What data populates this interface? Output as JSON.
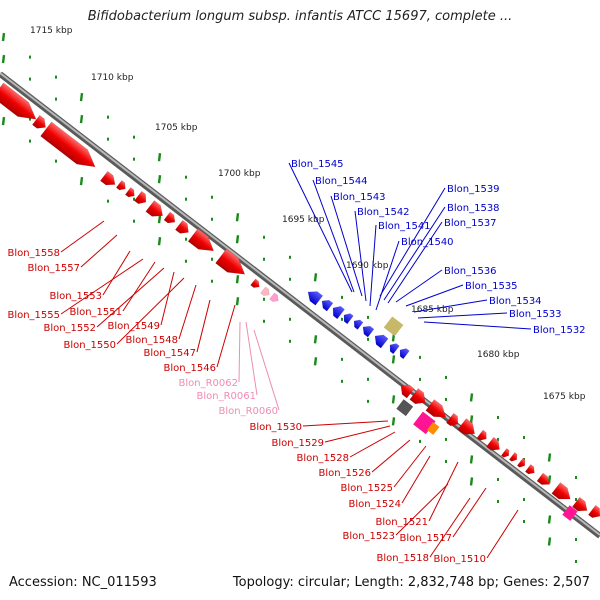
{
  "title": "Bifidobacterium longum subsp. infantis ATCC 15697, complete ...",
  "accession": "Accession: NC_011593",
  "summary": "Topology: circular; Length: 2,832,748 bp; Genes: 2,507",
  "colors": {
    "forward_strand_gene": "#ff0000",
    "reverse_strand_gene": "#0000ff",
    "rna_gene": "#ff69b4",
    "backbone": "#8a8a8a",
    "ticks": "#1a8a1a"
  },
  "scale_labels": [
    "1715 kbp",
    "1710 kbp",
    "1705 kbp",
    "1700 kbp",
    "1695 kbp",
    "1690 kbp",
    "1685 kbp",
    "1680 kbp",
    "1675 kbp"
  ],
  "reverse_gene_labels": [
    "Blon_1545",
    "Blon_1544",
    "Blon_1543",
    "Blon_1542",
    "Blon_1541",
    "Blon_1540",
    "Blon_1539",
    "Blon_1538",
    "Blon_1537",
    "Blon_1536",
    "Blon_1535",
    "Blon_1534",
    "Blon_1533",
    "Blon_1532"
  ],
  "forward_gene_labels_upper": [
    "Blon_1558",
    "Blon_1557",
    "Blon_1553",
    "Blon_1555",
    "Blon_1551",
    "Blon_1552",
    "Blon_1549",
    "Blon_1550",
    "Blon_1548",
    "Blon_1547",
    "Blon_1546"
  ],
  "rna_gene_labels": [
    "Blon_R0062",
    "Blon_R0061",
    "Blon_R0060"
  ],
  "forward_gene_labels_lower": [
    "Blon_1530",
    "Blon_1529",
    "Blon_1528",
    "Blon_1526",
    "Blon_1525",
    "Blon_1524",
    "Blon_1521",
    "Blon_1523",
    "Blon_1517",
    "Blon_1518",
    "Blon_1510"
  ]
}
